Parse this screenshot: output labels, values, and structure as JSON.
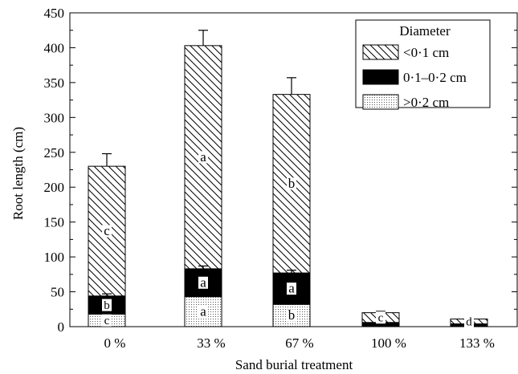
{
  "chart_data": {
    "type": "bar",
    "stacked": true,
    "xlabel": "Sand burial treatment",
    "ylabel": "Root length (cm)",
    "ylim": [
      0,
      450
    ],
    "yticks": [
      0,
      50,
      100,
      150,
      200,
      250,
      300,
      350,
      400,
      450
    ],
    "categories": [
      "0 %",
      "33 %",
      "67 %",
      "100 %",
      "133 %"
    ],
    "legend": {
      "title": "Diameter",
      "placement": "top-right"
    },
    "series": [
      {
        "name": ">0·2 cm",
        "pattern": "dots",
        "values": [
          18,
          43,
          32,
          0,
          0
        ],
        "labels": [
          "c",
          "a",
          "b",
          "",
          ""
        ]
      },
      {
        "name": "0·1–0·2 cm",
        "pattern": "solid",
        "values": [
          26,
          40,
          45,
          6,
          4
        ],
        "labels": [
          "b",
          "a",
          "a",
          "",
          ""
        ]
      },
      {
        "name": "<0·1 cm",
        "pattern": "hatch",
        "values": [
          186,
          320,
          256,
          14,
          7
        ],
        "labels": [
          "c",
          "a",
          "b",
          "c",
          "d"
        ]
      }
    ],
    "error_bars": {
      "total_upper": [
        248,
        425,
        357,
        22,
        0
      ],
      "boundary_upper": [
        47,
        87,
        81,
        0,
        0
      ]
    },
    "grid": false
  }
}
